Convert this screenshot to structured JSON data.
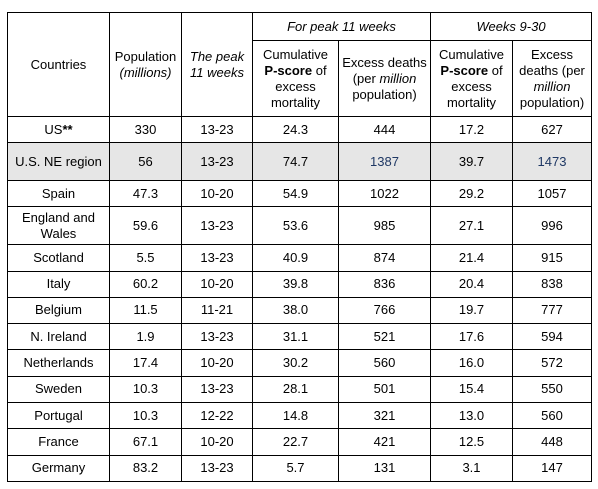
{
  "header": {
    "countries": "Countries",
    "population": "Population",
    "population_unit": "(millions)",
    "peak_weeks": "The peak 11 weeks",
    "group_peak": "For peak 11 weeks",
    "group_weeks": "Weeks 9-30",
    "cum_pre": "Cumulative",
    "pscore": "P-score",
    "cum_post": "of excess mortality",
    "excess_pre": "Excess deaths (per",
    "excess_million": "million",
    "excess_post": "population)"
  },
  "rows": [
    {
      "country": "US",
      "mark": "**",
      "pop": "330",
      "peak": "13-23",
      "p_peak": "24.3",
      "ex_peak": "444",
      "p_930": "17.2",
      "ex_930": "627"
    },
    {
      "country": "U.S. NE region",
      "mark": "",
      "pop": "56",
      "peak": "13-23",
      "p_peak": "74.7",
      "ex_peak": "1387",
      "p_930": "39.7",
      "ex_930": "1473"
    },
    {
      "country": "Spain",
      "mark": "",
      "pop": "47.3",
      "peak": "10-20",
      "p_peak": "54.9",
      "ex_peak": "1022",
      "p_930": "29.2",
      "ex_930": "1057"
    },
    {
      "country": "England and Wales",
      "mark": "",
      "pop": "59.6",
      "peak": "13-23",
      "p_peak": "53.6",
      "ex_peak": "985",
      "p_930": "27.1",
      "ex_930": "996"
    },
    {
      "country": "Scotland",
      "mark": "",
      "pop": "5.5",
      "peak": "13-23",
      "p_peak": "40.9",
      "ex_peak": "874",
      "p_930": "21.4",
      "ex_930": "915"
    },
    {
      "country": "Italy",
      "mark": "",
      "pop": "60.2",
      "peak": "10-20",
      "p_peak": "39.8",
      "ex_peak": "836",
      "p_930": "20.4",
      "ex_930": "838"
    },
    {
      "country": "Belgium",
      "mark": "",
      "pop": "11.5",
      "peak": "11-21",
      "p_peak": "38.0",
      "ex_peak": "766",
      "p_930": "19.7",
      "ex_930": "777"
    },
    {
      "country": "N. Ireland",
      "mark": "",
      "pop": "1.9",
      "peak": "13-23",
      "p_peak": "31.1",
      "ex_peak": "521",
      "p_930": "17.6",
      "ex_930": "594"
    },
    {
      "country": "Netherlands",
      "mark": "",
      "pop": "17.4",
      "peak": "10-20",
      "p_peak": "30.2",
      "ex_peak": "560",
      "p_930": "16.0",
      "ex_930": "572"
    },
    {
      "country": "Sweden",
      "mark": "",
      "pop": "10.3",
      "peak": "13-23",
      "p_peak": "28.1",
      "ex_peak": "501",
      "p_930": "15.4",
      "ex_930": "550"
    },
    {
      "country": "Portugal",
      "mark": "",
      "pop": "10.3",
      "peak": "12-22",
      "p_peak": "14.8",
      "ex_peak": "321",
      "p_930": "13.0",
      "ex_930": "560"
    },
    {
      "country": "France",
      "mark": "",
      "pop": "67.1",
      "peak": "10-20",
      "p_peak": "22.7",
      "ex_peak": "421",
      "p_930": "12.5",
      "ex_930": "448"
    },
    {
      "country": "Germany",
      "mark": "",
      "pop": "83.2",
      "peak": "13-23",
      "p_peak": "5.7",
      "ex_peak": "131",
      "p_930": "3.1",
      "ex_930": "147"
    }
  ],
  "style": {
    "shaded_row_bg": "#e6e6e6",
    "highlight_text": "#1f3864",
    "border": "#000000"
  }
}
